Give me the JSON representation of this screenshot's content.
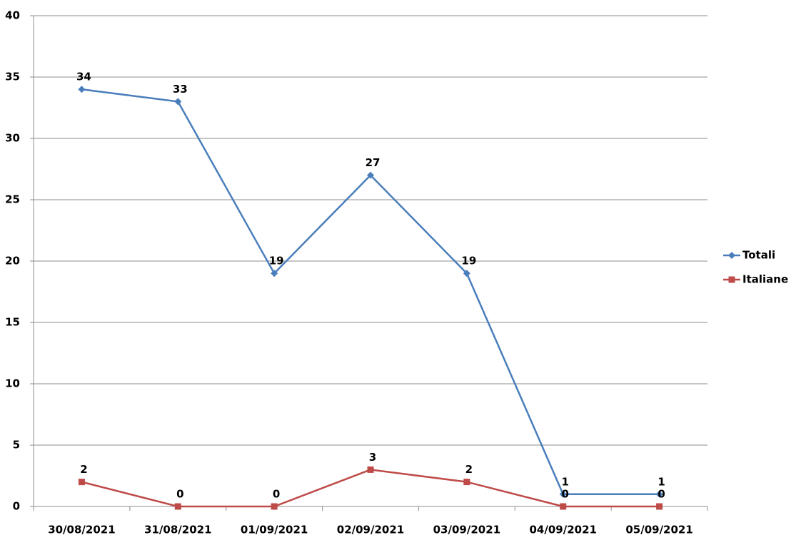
{
  "chart_data": {
    "type": "line",
    "categories": [
      "30/08/2021",
      "31/08/2021",
      "01/09/2021",
      "02/09/2021",
      "03/09/2021",
      "04/09/2021",
      "05/09/2021"
    ],
    "series": [
      {
        "name": "Totali",
        "color": "#4a7ebb",
        "marker": "diamond",
        "values": [
          34,
          33,
          19,
          27,
          19,
          1,
          1
        ]
      },
      {
        "name": "Italiane",
        "color": "#be4b48",
        "marker": "square",
        "values": [
          2,
          0,
          0,
          3,
          2,
          0,
          0
        ]
      }
    ],
    "ylim": [
      0,
      40
    ],
    "yticks": [
      0,
      5,
      10,
      15,
      20,
      25,
      30,
      35,
      40
    ],
    "grid": true,
    "legend": "right"
  }
}
